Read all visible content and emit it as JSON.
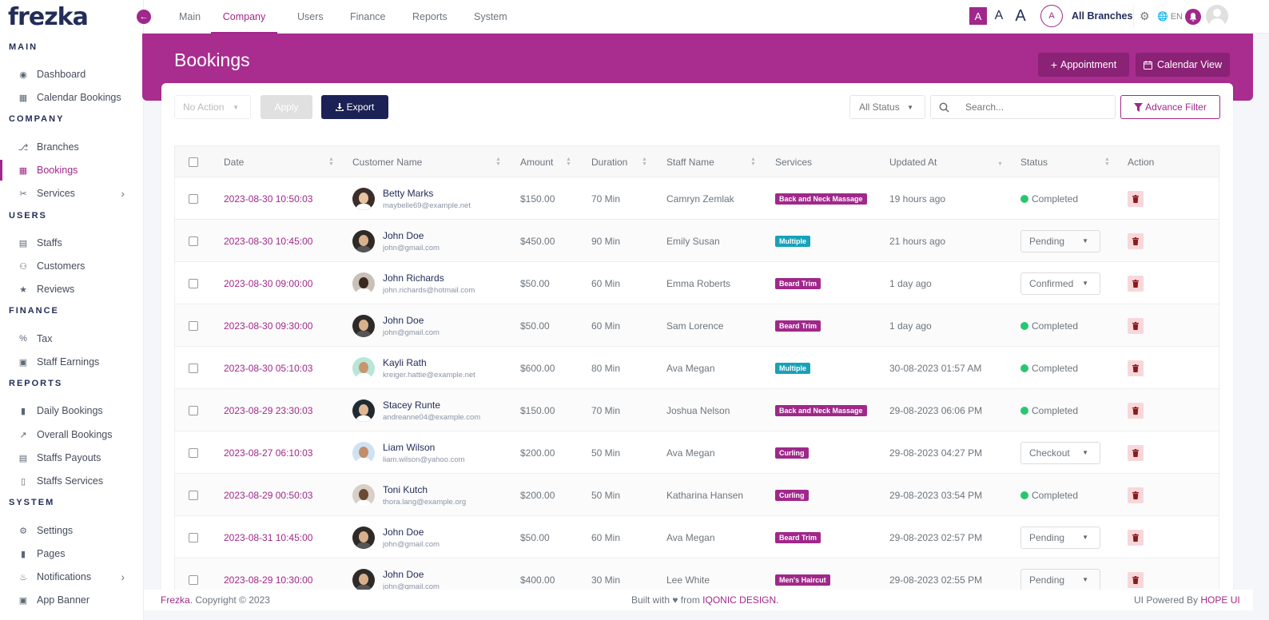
{
  "brand": {
    "logo": "frezka"
  },
  "sidebar": {
    "sections": [
      {
        "title": "MAIN",
        "items": [
          {
            "label": "Dashboard",
            "icon": "palette-icon"
          },
          {
            "label": "Calendar Bookings",
            "icon": "calendar-icon"
          }
        ]
      },
      {
        "title": "COMPANY",
        "items": [
          {
            "label": "Branches",
            "icon": "branch-icon"
          },
          {
            "label": "Bookings",
            "icon": "calendar-icon",
            "active": true
          },
          {
            "label": "Services",
            "icon": "scissors-icon",
            "submenu": true
          }
        ]
      },
      {
        "title": "USERS",
        "items": [
          {
            "label": "Staffs",
            "icon": "id-card-icon"
          },
          {
            "label": "Customers",
            "icon": "users-icon"
          },
          {
            "label": "Reviews",
            "icon": "star-icon"
          }
        ]
      },
      {
        "title": "FINANCE",
        "items": [
          {
            "label": "Tax",
            "icon": "percent-icon"
          },
          {
            "label": "Staff Earnings",
            "icon": "money-icon"
          }
        ]
      },
      {
        "title": "REPORTS",
        "items": [
          {
            "label": "Daily Bookings",
            "icon": "file-icon"
          },
          {
            "label": "Overall Bookings",
            "icon": "line-chart-icon"
          },
          {
            "label": "Staffs Payouts",
            "icon": "bar-chart-icon"
          },
          {
            "label": "Staffs Services",
            "icon": "clipboard-icon"
          }
        ]
      },
      {
        "title": "SYSTEM",
        "items": [
          {
            "label": "Settings",
            "icon": "gear-icon"
          },
          {
            "label": "Pages",
            "icon": "file-icon"
          },
          {
            "label": "Notifications",
            "icon": "bell-icon",
            "submenu": true
          },
          {
            "label": "App Banner",
            "icon": "image-icon"
          }
        ]
      }
    ]
  },
  "topnav": {
    "tabs": [
      "Main",
      "Company",
      "Users",
      "Finance",
      "Reports",
      "System"
    ],
    "active_tab": "Company",
    "font_sizes": [
      "A",
      "A",
      "A"
    ],
    "branch_avatar": "A",
    "branch_label": "All Branches",
    "lang": "EN"
  },
  "page": {
    "title": "Bookings",
    "appointment_btn": "Appointment",
    "calendar_btn": "Calendar View"
  },
  "toolbar": {
    "bulk_action": "No Action",
    "apply": "Apply",
    "export": "Export",
    "status_filter": "All Status",
    "search_placeholder": "Search...",
    "advance_filter": "Advance Filter"
  },
  "table": {
    "columns": [
      "Date",
      "Customer Name",
      "Amount",
      "Duration",
      "Staff Name",
      "Services",
      "Updated At",
      "Status",
      "Action"
    ],
    "rows": [
      {
        "date": "2023-08-30 10:50:03",
        "name": "Betty Marks",
        "email": "maybelle69@example.net",
        "amount": "$150.00",
        "duration": "70 Min",
        "staff": "Camryn Zemlak",
        "service": "Back and Neck Massage",
        "service_color": "#a0288a",
        "updated": "19 hours ago",
        "status": "Completed",
        "status_type": "done",
        "avatar_bg": "#3a2e2a",
        "avatar_skin": "#e8c3a0"
      },
      {
        "date": "2023-08-30 10:45:00",
        "name": "John Doe",
        "email": "john@gmail.com",
        "amount": "$450.00",
        "duration": "90 Min",
        "staff": "Emily Susan",
        "service": "Multiple",
        "service_color": "#17a2b8",
        "updated": "21 hours ago",
        "status": "Pending",
        "status_type": "select",
        "avatar_bg": "#2e2a28",
        "avatar_skin": "#d9b08c"
      },
      {
        "date": "2023-08-30 09:00:00",
        "name": "John Richards",
        "email": "john.richards@hotmail.com",
        "amount": "$50.00",
        "duration": "60 Min",
        "staff": "Emma Roberts",
        "service": "Beard Trim",
        "service_color": "#a0288a",
        "updated": "1 day ago",
        "status": "Confirmed",
        "status_type": "select",
        "avatar_bg": "#c9c0b8",
        "avatar_skin": "#3b2a22"
      },
      {
        "date": "2023-08-30 09:30:00",
        "name": "John Doe",
        "email": "john@gmail.com",
        "amount": "$50.00",
        "duration": "60 Min",
        "staff": "Sam Lorence",
        "service": "Beard Trim",
        "service_color": "#a0288a",
        "updated": "1 day ago",
        "status": "Completed",
        "status_type": "done",
        "avatar_bg": "#2e2a28",
        "avatar_skin": "#d9b08c"
      },
      {
        "date": "2023-08-30 05:10:03",
        "name": "Kayli Rath",
        "email": "kreiger.hattie@example.net",
        "amount": "$600.00",
        "duration": "80 Min",
        "staff": "Ava Megan",
        "service": "Multiple",
        "service_color": "#17a2b8",
        "updated": "30-08-2023 01:57 AM",
        "status": "Completed",
        "status_type": "done",
        "avatar_bg": "#b8e6d8",
        "avatar_skin": "#c9956f"
      },
      {
        "date": "2023-08-29 23:30:03",
        "name": "Stacey Runte",
        "email": "andreanne04@example.com",
        "amount": "$150.00",
        "duration": "70 Min",
        "staff": "Joshua Nelson",
        "service": "Back and Neck Massage",
        "service_color": "#a0288a",
        "updated": "29-08-2023 06:06 PM",
        "status": "Completed",
        "status_type": "done",
        "avatar_bg": "#1f2a33",
        "avatar_skin": "#e0b896"
      },
      {
        "date": "2023-08-27 06:10:03",
        "name": "Liam Wilson",
        "email": "liam.wilson@yahoo.com",
        "amount": "$200.00",
        "duration": "50 Min",
        "staff": "Ava Megan",
        "service": "Curling",
        "service_color": "#a0288a",
        "updated": "29-08-2023 04:27 PM",
        "status": "Checkout",
        "status_type": "select",
        "avatar_bg": "#cfe2f3",
        "avatar_skin": "#c28d68"
      },
      {
        "date": "2023-08-29 00:50:03",
        "name": "Toni Kutch",
        "email": "thora.lang@example.org",
        "amount": "$200.00",
        "duration": "50 Min",
        "staff": "Katharina Hansen",
        "service": "Curling",
        "service_color": "#a0288a",
        "updated": "29-08-2023 03:54 PM",
        "status": "Completed",
        "status_type": "done",
        "avatar_bg": "#d8d0c8",
        "avatar_skin": "#6b4a35"
      },
      {
        "date": "2023-08-31 10:45:00",
        "name": "John Doe",
        "email": "john@gmail.com",
        "amount": "$50.00",
        "duration": "60 Min",
        "staff": "Ava Megan",
        "service": "Beard Trim",
        "service_color": "#a0288a",
        "updated": "29-08-2023 02:57 PM",
        "status": "Pending",
        "status_type": "select",
        "avatar_bg": "#2e2a28",
        "avatar_skin": "#d9b08c"
      },
      {
        "date": "2023-08-29 10:30:00",
        "name": "John Doe",
        "email": "john@gmail.com",
        "amount": "$400.00",
        "duration": "30 Min",
        "staff": "Lee White",
        "service": "Men's Haircut",
        "service_color": "#a0288a",
        "updated": "29-08-2023 02:55 PM",
        "status": "Pending",
        "status_type": "select",
        "avatar_bg": "#2e2a28",
        "avatar_skin": "#d9b08c"
      }
    ]
  },
  "footer": {
    "brand": "Frezka",
    "copyright": ". Copyright © 2023",
    "built_with": "Built with ♥ from ",
    "built_by": "IQONIC DESIGN.",
    "powered": "UI Powered By ",
    "powered_by": "HOPE UI"
  },
  "colors": {
    "accent": "#a0288a",
    "navy": "#232d5a",
    "success": "#28c76f",
    "info": "#17a2b8"
  }
}
